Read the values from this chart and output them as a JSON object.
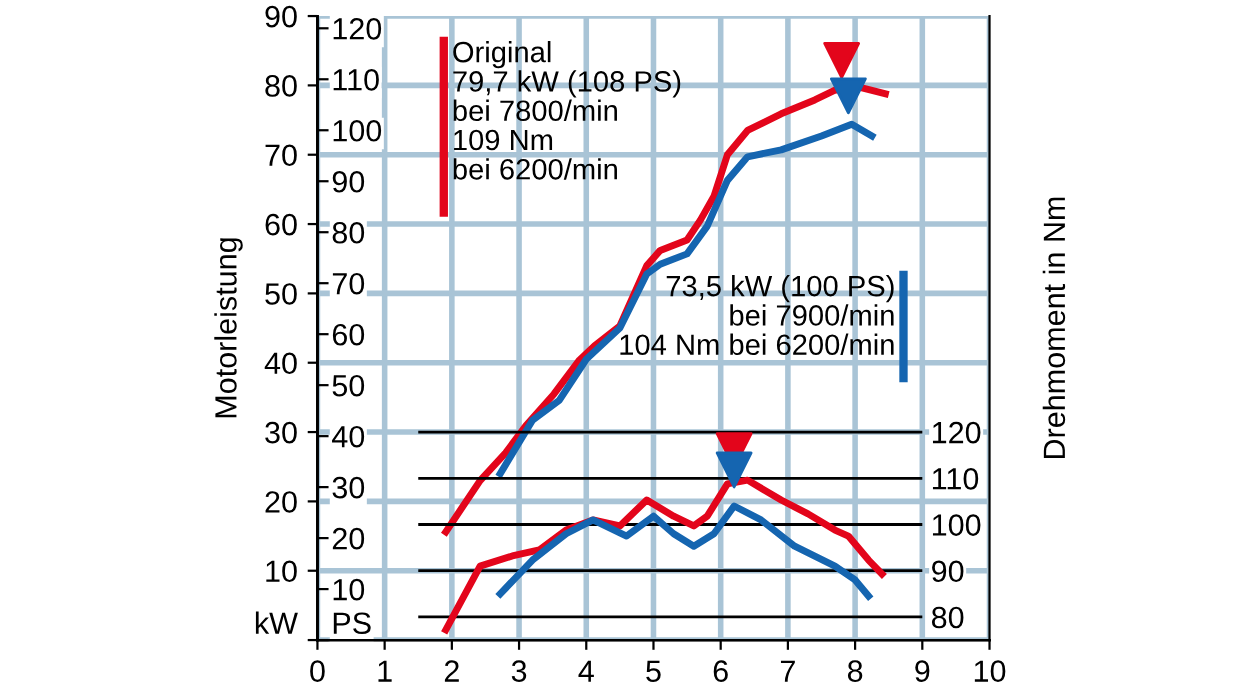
{
  "chart_data": {
    "type": "line",
    "ylabel": "Motorleistung",
    "y3label": "Drehmoment in Nm",
    "xlim": [
      0,
      10
    ],
    "xticks": [
      0,
      1,
      2,
      3,
      4,
      5,
      6,
      7,
      8,
      9,
      10
    ],
    "ylim": [
      0,
      90
    ],
    "yticks": [
      {
        "value": 0,
        "label": "kW"
      },
      10,
      20,
      30,
      40,
      50,
      60,
      70,
      80,
      90
    ],
    "y2lim": [
      0,
      122.4
    ],
    "y2ticks": [
      {
        "value": 0,
        "label": "PS"
      },
      10,
      20,
      30,
      40,
      50,
      60,
      70,
      80,
      90,
      100,
      110,
      120
    ],
    "y3lim": [
      75,
      210
    ],
    "y3ticks": [
      80,
      90,
      100,
      110,
      120
    ],
    "grid": true,
    "annotations": [
      "Original\n79,7 kW (108 PS)\nbei 7800/min\n109 Nm\nbei 6200/min",
      "73,5 kW (100 PS)\nbei 7900/min\n104 Nm bei 6200/min"
    ],
    "series": [
      {
        "color": "#e3051b",
        "x": [
          1.91,
          2.42,
          2.8,
          3.1,
          3.52,
          3.9,
          4.12,
          4.5,
          4.9,
          5.1,
          5.5,
          5.7,
          5.9,
          6.1,
          6.4,
          6.9,
          7.4,
          7.7,
          8.0,
          8.45
        ],
        "values": [
          15.6,
          23,
          27,
          30.9,
          35.5,
          40.4,
          42.4,
          45.3,
          54,
          56.2,
          57.7,
          60.6,
          64,
          70,
          73.5,
          75.9,
          77.9,
          79.3,
          79.9,
          78.8
        ]
      },
      {
        "color": "#1565b0",
        "x": [
          2.72,
          3.2,
          3.6,
          4.0,
          4.5,
          4.9,
          5.1,
          5.5,
          5.8,
          6.1,
          6.4,
          6.9,
          7.5,
          7.95,
          8.25
        ],
        "values": [
          24,
          31.7,
          34.6,
          40.5,
          45,
          52.8,
          54.2,
          55.7,
          59.7,
          66.3,
          69.7,
          70.7,
          72.7,
          74.4,
          72.7
        ]
      },
      {
        "color": "#e3051b",
        "axis": "y3",
        "x": [
          1.91,
          2.42,
          2.9,
          3.3,
          3.7,
          4.1,
          4.5,
          4.9,
          5.3,
          5.6,
          5.8,
          6.1,
          6.4,
          6.9,
          7.3,
          7.7,
          7.9,
          8.2,
          8.4
        ],
        "values": [
          77.2,
          91,
          93.2,
          94.5,
          98.8,
          101,
          99.7,
          105.3,
          101.8,
          99.7,
          101.8,
          108.8,
          109.6,
          105.3,
          102.3,
          98.8,
          97.5,
          92.3,
          89.3
        ]
      },
      {
        "color": "#1565b0",
        "axis": "y3",
        "x": [
          2.72,
          3.2,
          3.7,
          4.1,
          4.6,
          5.0,
          5.3,
          5.6,
          5.9,
          6.2,
          6.6,
          7.1,
          7.7,
          8.0,
          8.2
        ],
        "values": [
          85,
          92.3,
          98,
          101,
          97.5,
          101.8,
          98,
          95.3,
          98,
          104,
          101,
          95.3,
          91,
          88,
          84.5
        ]
      },
      {
        "type": "scatter",
        "marker": "triangle",
        "color": "#e3051b",
        "x": [
          7.8
        ],
        "values": [
          83.6
        ]
      },
      {
        "type": "scatter",
        "marker": "triangle",
        "color": "#1565b0",
        "x": [
          7.9
        ],
        "values": [
          78.5
        ]
      },
      {
        "type": "scatter",
        "marker": "triangle",
        "color": "#e3051b",
        "axis": "y3",
        "x": [
          6.2
        ],
        "values": [
          116
        ]
      },
      {
        "type": "scatter",
        "marker": "triangle",
        "color": "#1565b0",
        "axis": "y3",
        "x": [
          6.2
        ],
        "values": [
          111.8
        ]
      }
    ]
  }
}
